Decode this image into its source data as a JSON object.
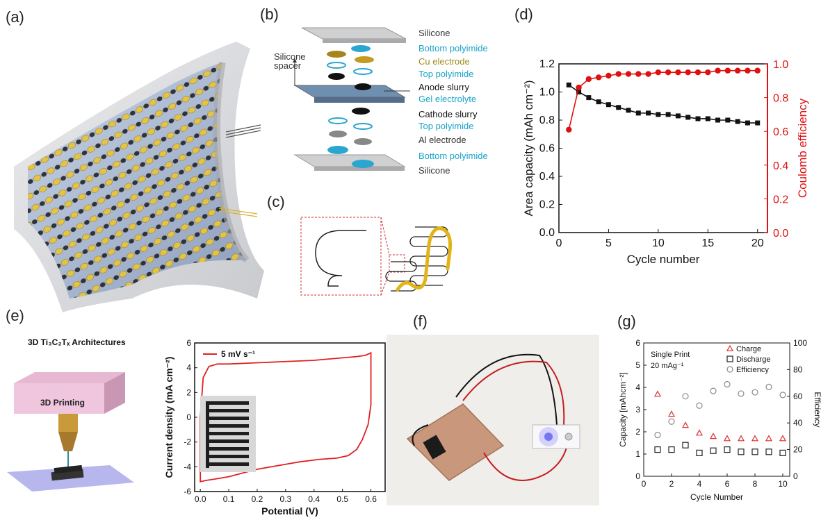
{
  "panels": {
    "a": "(a)",
    "b": "(b)",
    "c": "(c)",
    "d": "(d)",
    "e": "(e)",
    "f": "(f)",
    "g": "(g)"
  },
  "stack_labels": [
    {
      "text": "Silicone",
      "style": "grey"
    },
    {
      "text": "Bottom polyimide",
      "style": "blue"
    },
    {
      "text": "Cu electrode",
      "style": "gold"
    },
    {
      "text": "Top polyimide",
      "style": "blue"
    },
    {
      "text": "Anode slurry",
      "style": "black"
    },
    {
      "text": "Gel electrolyte",
      "style": "blue"
    },
    {
      "text": "Cathode slurry",
      "style": "black"
    },
    {
      "text": "Top polyimide",
      "style": "blue"
    },
    {
      "text": "Al electrode",
      "style": "grey"
    },
    {
      "text": "Bottom polyimide",
      "style": "blue"
    },
    {
      "text": "Silicone",
      "style": "grey"
    }
  ],
  "spacer_label_line1": "Silicone",
  "spacer_label_line2": "spacer",
  "e_title": "3D Ti₃C₂Tₓ Architectures",
  "e_box_label": "3D Printing",
  "chart_data": [
    {
      "id": "d",
      "type": "scatter",
      "xlabel": "Cycle number",
      "ylabel": "Area capacity (mAh cm⁻²)",
      "ylabel2": "Coulomb efficiency",
      "xlim": [
        0,
        21
      ],
      "ylim": [
        0,
        1.2
      ],
      "ylim2": [
        0,
        1.0
      ],
      "xticks": [
        0,
        5,
        10,
        15,
        20
      ],
      "yticks": [
        0.0,
        0.2,
        0.4,
        0.6,
        0.8,
        1.0,
        1.2
      ],
      "yticks2": [
        0.0,
        0.2,
        0.4,
        0.6,
        0.8,
        1.0
      ],
      "series": [
        {
          "axis": "left",
          "color": "#111111",
          "marker": "square",
          "x": [
            1,
            2,
            3,
            4,
            5,
            6,
            7,
            8,
            9,
            10,
            11,
            12,
            13,
            14,
            15,
            16,
            17,
            18,
            19,
            20
          ],
          "values": [
            1.05,
            1.0,
            0.96,
            0.93,
            0.91,
            0.89,
            0.87,
            0.85,
            0.85,
            0.84,
            0.84,
            0.83,
            0.82,
            0.81,
            0.81,
            0.8,
            0.8,
            0.79,
            0.78,
            0.78
          ]
        },
        {
          "axis": "right",
          "color": "#e01010",
          "marker": "circle",
          "x": [
            1,
            2,
            3,
            4,
            5,
            6,
            7,
            8,
            9,
            10,
            11,
            12,
            13,
            14,
            15,
            16,
            17,
            18,
            19,
            20
          ],
          "values": [
            0.61,
            0.86,
            0.91,
            0.92,
            0.93,
            0.94,
            0.94,
            0.94,
            0.94,
            0.95,
            0.95,
            0.95,
            0.95,
            0.95,
            0.95,
            0.96,
            0.96,
            0.96,
            0.96,
            0.96
          ]
        }
      ]
    },
    {
      "id": "e",
      "type": "line",
      "xlabel": "Potential (V)",
      "ylabel": "Current density (mA cm⁻²)",
      "legend": "5 mV s⁻¹",
      "xlim": [
        -0.02,
        0.65
      ],
      "ylim": [
        -6,
        6
      ],
      "xticks": [
        0.0,
        0.1,
        0.2,
        0.3,
        0.4,
        0.5,
        0.6
      ],
      "yticks": [
        -6,
        -4,
        -2,
        0,
        2,
        4,
        6
      ],
      "series": [
        {
          "color": "#e02020",
          "x": [
            0.0,
            0.01,
            0.03,
            0.06,
            0.1,
            0.2,
            0.3,
            0.4,
            0.5,
            0.55,
            0.58,
            0.6,
            0.6,
            0.59,
            0.57,
            0.55,
            0.52,
            0.48,
            0.42,
            0.35,
            0.3,
            0.2,
            0.1,
            0.05,
            0.02,
            0.0,
            0.0
          ],
          "values": [
            0.0,
            3.2,
            4.1,
            4.3,
            4.3,
            4.4,
            4.5,
            4.6,
            4.8,
            4.9,
            5.0,
            5.2,
            1.0,
            -0.6,
            -1.8,
            -2.6,
            -3.1,
            -3.3,
            -3.4,
            -3.6,
            -3.8,
            -4.2,
            -4.8,
            -5.0,
            -5.1,
            -5.2,
            0.0
          ]
        }
      ]
    },
    {
      "id": "g",
      "type": "scatter",
      "xlabel": "Cycle Number",
      "ylabel": "Capacity [mAhcm⁻²]",
      "ylabel2": "Efficiency",
      "xlim": [
        0,
        10.5
      ],
      "ylim": [
        0,
        6
      ],
      "ylim2": [
        0,
        100
      ],
      "xticks": [
        0,
        2,
        4,
        6,
        8,
        10
      ],
      "yticks": [
        0,
        1,
        2,
        3,
        4,
        5,
        6
      ],
      "yticks2": [
        0,
        20,
        40,
        60,
        80,
        100
      ],
      "annotation_line1": "Single Print",
      "annotation_line2": "20 mAg⁻¹",
      "series": [
        {
          "name": "Charge",
          "axis": "left",
          "color": "#d83030",
          "marker": "triangle",
          "x": [
            1,
            2,
            3,
            4,
            5,
            6,
            7,
            8,
            9,
            10
          ],
          "values": [
            3.7,
            2.8,
            2.3,
            1.95,
            1.8,
            1.7,
            1.7,
            1.7,
            1.7,
            1.7
          ]
        },
        {
          "name": "Discharge",
          "axis": "left",
          "color": "#222222",
          "marker": "square",
          "x": [
            1,
            2,
            3,
            4,
            5,
            6,
            7,
            8,
            9,
            10
          ],
          "values": [
            1.2,
            1.2,
            1.4,
            1.05,
            1.15,
            1.2,
            1.1,
            1.1,
            1.1,
            1.05
          ]
        },
        {
          "name": "Efficiency",
          "axis": "right",
          "color": "#8a8a8a",
          "marker": "circle",
          "x": [
            1,
            2,
            3,
            4,
            5,
            6,
            7,
            8,
            9,
            10
          ],
          "values": [
            31,
            41,
            60,
            53,
            64,
            69,
            62,
            63,
            67,
            61
          ]
        }
      ]
    }
  ]
}
